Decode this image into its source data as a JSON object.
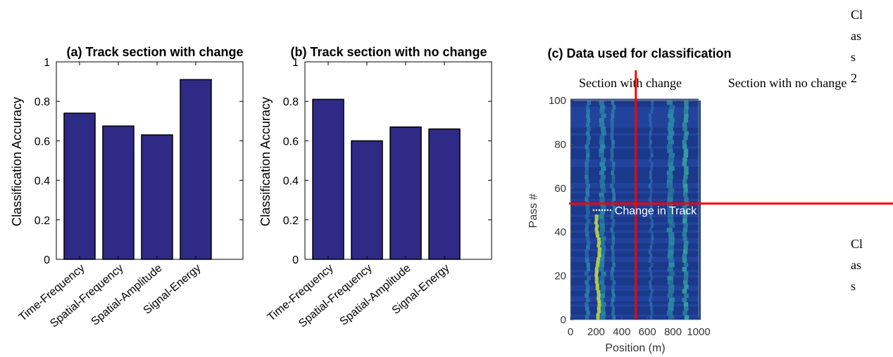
{
  "side_label_top": [
    "Cl",
    "as",
    "s",
    "2"
  ],
  "side_label_bottom": [
    "Cl",
    "as",
    "s"
  ],
  "chart_data": [
    {
      "type": "bar",
      "title": "(a) Track section with change",
      "ylabel": "Classification Accuracy",
      "categories": [
        "Time-Frequency",
        "Spatial-Frequency",
        "Spatial-Amplitude",
        "Signal-Energy"
      ],
      "values": [
        0.74,
        0.675,
        0.63,
        0.91
      ],
      "ylim": [
        0,
        1
      ],
      "yticks": [
        "0",
        "0.2",
        "0.4",
        "0.6",
        "0.8",
        "1"
      ],
      "bar_color": "#2e2a86"
    },
    {
      "type": "bar",
      "title": "(b) Track section with no change",
      "ylabel": "Classification Accuracy",
      "categories": [
        "Time-Frequency",
        "Spatial-Frequency",
        "Spatial-Amplitude",
        "Signal-Energy"
      ],
      "values": [
        0.81,
        0.6,
        0.67,
        0.66
      ],
      "ylim": [
        0,
        1
      ],
      "yticks": [
        "0",
        "0.2",
        "0.4",
        "0.6",
        "0.8",
        "1"
      ],
      "bar_color": "#2e2a86"
    },
    {
      "type": "heatmap",
      "title": "(c) Data used for classification",
      "xlabel": "Position (m)",
      "ylabel": "Pass #",
      "xlim": [
        0,
        1000
      ],
      "ylim": [
        0,
        100
      ],
      "xticks": [
        "0",
        "200",
        "400",
        "600",
        "800",
        "1000"
      ],
      "yticks": [
        "0",
        "20",
        "40",
        "60",
        "80",
        "100"
      ],
      "annotations": {
        "left_section": "Section with change",
        "right_section": "Section with no change",
        "change_marker": "Change in Track"
      },
      "divider_x": 510,
      "divider_y": 53,
      "change_marker_y": 50,
      "colors": {
        "background": "#1f3f96",
        "line": "#ff0000",
        "highlight": "#c8e640"
      }
    }
  ]
}
